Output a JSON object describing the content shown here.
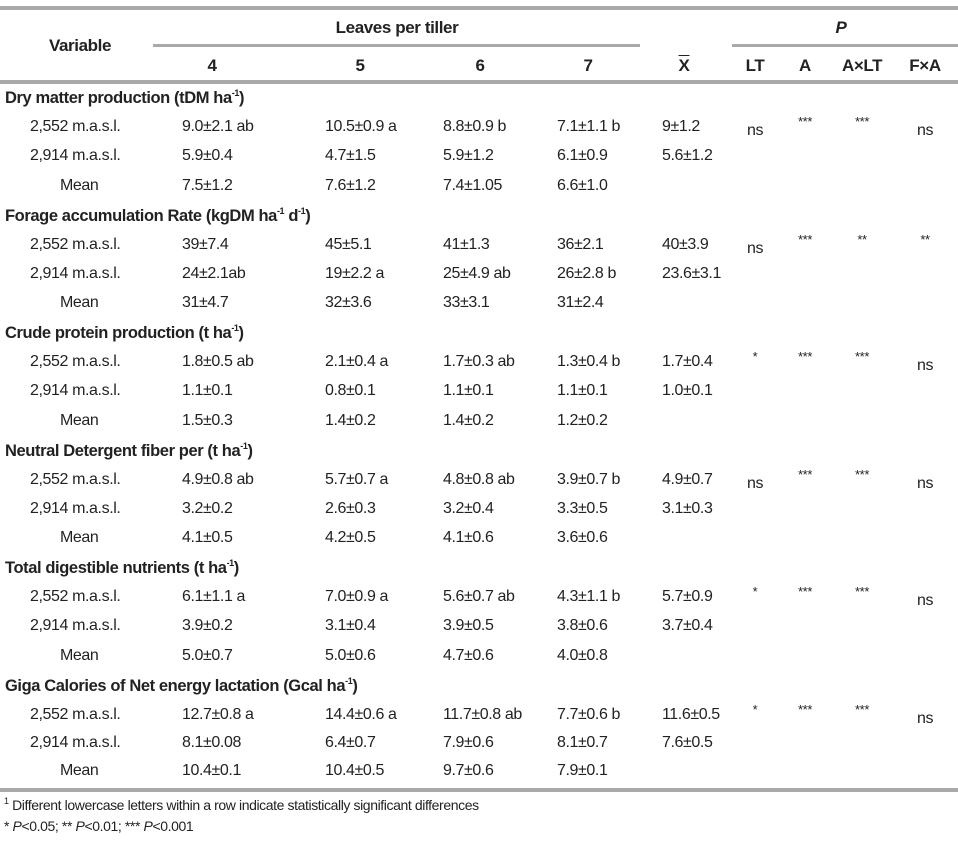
{
  "header": {
    "variable": "Variable",
    "leaves_group": "Leaves per tiller",
    "leaves": [
      "4",
      "5",
      "6",
      "7"
    ],
    "mean_symbol": "X",
    "p_group": "P",
    "p_cols": [
      "LT",
      "A",
      "A×LT",
      "F×A"
    ]
  },
  "sections": [
    {
      "title": [
        {
          "t": "Dry matter production (tDM ha"
        },
        {
          "sup": "-1"
        },
        {
          "t": ")"
        }
      ],
      "rows": [
        {
          "label": "2,552 m.a.s.l.",
          "values": [
            "9.0±2.1 ab",
            "10.5±0.9 a",
            "8.8±0.9 b",
            "7.1±1.1 b"
          ],
          "mean": "9±1.2",
          "p": [
            "ns",
            "***",
            "***",
            "ns"
          ]
        },
        {
          "label": "2,914 m.a.s.l.",
          "values": [
            "5.9±0.4",
            "4.7±1.5",
            "5.9±1.2",
            "6.1±0.9"
          ],
          "mean": "5.6±1.2",
          "p": [
            "",
            "",
            "",
            ""
          ]
        },
        {
          "label": "Mean",
          "values": [
            "7.5±1.2",
            "7.6±1.2",
            "7.4±1.05",
            "6.6±1.0"
          ],
          "mean": "",
          "p": [
            "",
            "",
            "",
            ""
          ]
        }
      ]
    },
    {
      "title": [
        {
          "t": "Forage accumulation Rate (kgDM ha"
        },
        {
          "sup": "-1"
        },
        {
          "t": " d"
        },
        {
          "sup": "-1"
        },
        {
          "t": ")"
        }
      ],
      "rows": [
        {
          "label": "2,552 m.a.s.l.",
          "values": [
            "39±7.4",
            "45±5.1",
            "41±1.3",
            "36±2.1"
          ],
          "mean": "40±3.9",
          "p": [
            "ns",
            "***",
            "**",
            "**"
          ]
        },
        {
          "label": "2,914 m.a.s.l.",
          "values": [
            "24±2.1ab",
            "19±2.2 a",
            "25±4.9 ab",
            "26±2.8 b"
          ],
          "mean": "23.6±3.1",
          "p": [
            "",
            "",
            "",
            ""
          ]
        },
        {
          "label": "Mean",
          "values": [
            "31±4.7",
            "32±3.6",
            "33±3.1",
            "31±2.4"
          ],
          "mean": "",
          "p": [
            "",
            "",
            "",
            ""
          ]
        }
      ]
    },
    {
      "title": [
        {
          "t": "Crude protein production (t ha"
        },
        {
          "sup": "-1"
        },
        {
          "t": ")"
        }
      ],
      "rows": [
        {
          "label": "2,552 m.a.s.l.",
          "values": [
            "1.8±0.5 ab",
            "2.1±0.4 a",
            "1.7±0.3 ab",
            "1.3±0.4 b"
          ],
          "mean": "1.7±0.4",
          "p": [
            "*",
            "***",
            "***",
            "ns"
          ]
        },
        {
          "label": "2,914 m.a.s.l.",
          "values": [
            "1.1±0.1",
            "0.8±0.1",
            "1.1±0.1",
            "1.1±0.1"
          ],
          "mean": "1.0±0.1",
          "p": [
            "",
            "",
            "",
            ""
          ]
        },
        {
          "label": "Mean",
          "values": [
            "1.5±0.3",
            "1.4±0.2",
            "1.4±0.2",
            "1.2±0.2"
          ],
          "mean": "",
          "p": [
            "",
            "",
            "",
            ""
          ]
        }
      ]
    },
    {
      "title": [
        {
          "t": "Neutral Detergent fiber per (t ha"
        },
        {
          "sup": "-1"
        },
        {
          "t": ")"
        }
      ],
      "rows": [
        {
          "label": "2,552 m.a.s.l.",
          "values": [
            "4.9±0.8 ab",
            "5.7±0.7 a",
            "4.8±0.8 ab",
            "3.9±0.7 b"
          ],
          "mean": "4.9±0.7",
          "p": [
            "ns",
            "***",
            "***",
            "ns"
          ]
        },
        {
          "label": "2,914 m.a.s.l.",
          "values": [
            "3.2±0.2",
            "2.6±0.3",
            "3.2±0.4",
            "3.3±0.5"
          ],
          "mean": "3.1±0.3",
          "p": [
            "",
            "",
            "",
            ""
          ]
        },
        {
          "label": "Mean",
          "values": [
            "4.1±0.5",
            "4.2±0.5",
            "4.1±0.6",
            "3.6±0.6"
          ],
          "mean": "",
          "p": [
            "",
            "",
            "",
            ""
          ]
        }
      ]
    },
    {
      "title": [
        {
          "t": "Total digestible nutrients (t ha"
        },
        {
          "sup": "-1"
        },
        {
          "t": ")"
        }
      ],
      "rows": [
        {
          "label": "2,552 m.a.s.l.",
          "values": [
            "6.1±1.1 a",
            "7.0±0.9 a",
            "5.6±0.7 ab",
            "4.3±1.1 b"
          ],
          "mean": "5.7±0.9",
          "p": [
            "*",
            "***",
            "***",
            "ns"
          ]
        },
        {
          "label": "2,914 m.a.s.l.",
          "values": [
            "3.9±0.2",
            "3.1±0.4",
            "3.9±0.5",
            "3.8±0.6"
          ],
          "mean": "3.7±0.4",
          "p": [
            "",
            "",
            "",
            ""
          ]
        },
        {
          "label": "Mean",
          "values": [
            "5.0±0.7",
            "5.0±0.6",
            "4.7±0.6",
            "4.0±0.8"
          ],
          "mean": "",
          "p": [
            "",
            "",
            "",
            ""
          ]
        }
      ]
    },
    {
      "title": [
        {
          "t": "Giga Calories of Net energy lactation (Gcal ha"
        },
        {
          "sup": "-1"
        },
        {
          "t": ")"
        }
      ],
      "rows": [
        {
          "label": "2,552 m.a.s.l.",
          "values": [
            "12.7±0.8 a",
            "14.4±0.6 a",
            "11.7±0.8 ab",
            "7.7±0.6 b"
          ],
          "mean": "11.6±0.5",
          "p": [
            "*",
            "***",
            "***",
            "ns"
          ]
        },
        {
          "label": "2,914 m.a.s.l.",
          "values": [
            "8.1±0.08",
            "6.4±0.7",
            "7.9±0.6",
            "8.1±0.7"
          ],
          "mean": "7.6±0.5",
          "p": [
            "",
            "",
            "",
            ""
          ]
        },
        {
          "label": "Mean",
          "values": [
            "10.4±0.1",
            "10.4±0.5",
            "9.7±0.6",
            "7.9±0.1"
          ],
          "mean": "",
          "p": [
            "",
            "",
            "",
            ""
          ]
        }
      ]
    }
  ],
  "footnotes": {
    "note1_sup": "1",
    "note1": " Different lowercase letters within a row indicate statistically significant differences",
    "note2": [
      {
        "t": "* "
      },
      {
        "i": "P"
      },
      {
        "t": "<0.05; ** "
      },
      {
        "i": "P"
      },
      {
        "t": "<0.01; *** "
      },
      {
        "i": "P"
      },
      {
        "t": "<0.001"
      }
    ]
  }
}
